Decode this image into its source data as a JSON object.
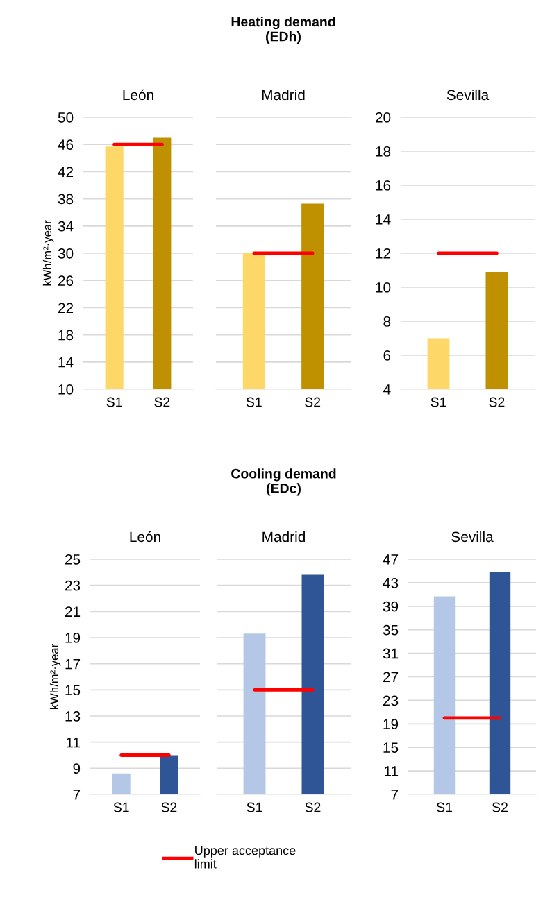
{
  "chart_data": [
    {
      "type": "bar",
      "subtitle": "León",
      "ylabel": "kWh/m²·year",
      "categories": [
        "S1",
        "S2"
      ],
      "values": [
        45.7,
        47.0
      ],
      "colors": [
        "#fdd868",
        "#bf9000"
      ],
      "ylim": [
        10,
        50
      ],
      "yticks": [
        10,
        14,
        18,
        22,
        26,
        30,
        34,
        38,
        42,
        46,
        50
      ],
      "grid": "y",
      "ref_lines": [
        {
          "axis": "y",
          "value": 46,
          "color": "#ff0000"
        }
      ]
    },
    {
      "type": "bar",
      "title": "Heating demand\n(EDh)",
      "subtitle": "Madrid",
      "categories": [
        "S1",
        "S2"
      ],
      "values": [
        30.0,
        37.3
      ],
      "colors": [
        "#fdd868",
        "#bf9000"
      ],
      "ylim": [
        10,
        50
      ],
      "yticks": [
        10,
        14,
        18,
        22,
        26,
        30,
        34,
        38,
        42,
        46,
        50
      ],
      "tick_labels": "x",
      "grid": "y",
      "ref_lines": [
        {
          "axis": "y",
          "value": 30,
          "color": "#ff0000"
        }
      ]
    },
    {
      "type": "bar",
      "subtitle": "Sevilla",
      "categories": [
        "S1",
        "S2"
      ],
      "values": [
        7.0,
        10.9
      ],
      "colors": [
        "#fdd868",
        "#bf9000"
      ],
      "ylim": [
        4,
        20
      ],
      "yticks": [
        4,
        6,
        8,
        10,
        12,
        14,
        16,
        18,
        20
      ],
      "grid": "y",
      "ref_lines": [
        {
          "axis": "y",
          "value": 12,
          "color": "#ff0000"
        }
      ]
    },
    {
      "type": "bar",
      "subtitle": "León",
      "ylabel": "kWh/m²·year",
      "categories": [
        "S1",
        "S2"
      ],
      "values": [
        8.6,
        10.0
      ],
      "colors": [
        "#b4c7e7",
        "#2f5597"
      ],
      "ylim": [
        7,
        25
      ],
      "yticks": [
        7,
        9,
        11,
        13,
        15,
        17,
        19,
        21,
        23,
        25
      ],
      "grid": "y",
      "ref_lines": [
        {
          "axis": "y",
          "value": 10,
          "color": "#ff0000"
        }
      ]
    },
    {
      "type": "bar",
      "title": "Cooling demand\n(EDc)",
      "subtitle": "Madrid",
      "categories": [
        "S1",
        "S2"
      ],
      "values": [
        19.3,
        23.8
      ],
      "colors": [
        "#b4c7e7",
        "#2f5597"
      ],
      "ylim": [
        7,
        25
      ],
      "yticks": [
        7,
        9,
        11,
        13,
        15,
        17,
        19,
        21,
        23,
        25
      ],
      "tick_labels": "x",
      "grid": "y",
      "legend": "bottom",
      "ref_lines": [
        {
          "axis": "y",
          "value": 15,
          "color": "#ff0000",
          "label": "Upper acceptance\nlimit"
        }
      ]
    },
    {
      "type": "bar",
      "subtitle": "Sevilla",
      "categories": [
        "S1",
        "S2"
      ],
      "values": [
        40.7,
        44.8
      ],
      "colors": [
        "#b4c7e7",
        "#2f5597"
      ],
      "ylim": [
        7,
        47
      ],
      "yticks": [
        7,
        11,
        15,
        19,
        23,
        27,
        31,
        35,
        39,
        43,
        47
      ],
      "grid": "y",
      "ref_lines": [
        {
          "axis": "y",
          "value": 20,
          "color": "#ff0000"
        }
      ]
    }
  ]
}
